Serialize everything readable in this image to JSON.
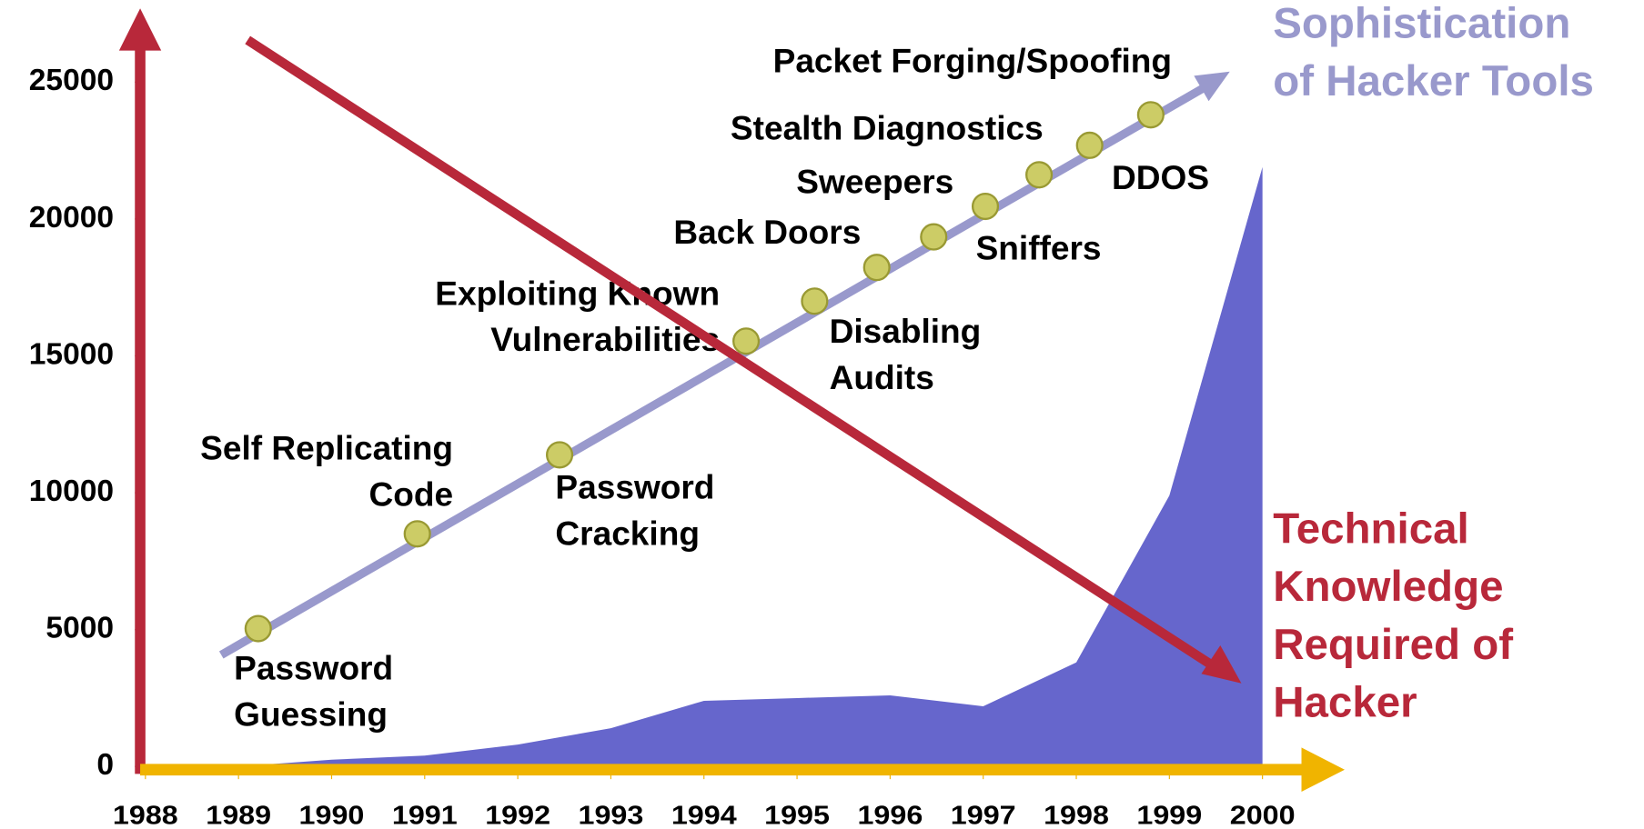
{
  "chart_data": {
    "type": "area",
    "x": [
      1989,
      1990,
      1991,
      1992,
      1993,
      1994,
      1995,
      1996,
      1997,
      1998,
      1999,
      2000
    ],
    "values": [
      0,
      250,
      400,
      800,
      1400,
      2400,
      2500,
      2600,
      2200,
      3800,
      9900,
      21900
    ],
    "color": "#6666cc",
    "xlim": [
      1988,
      2000
    ],
    "ylim": [
      0,
      25000
    ],
    "xticks": [
      1988,
      1989,
      1990,
      1991,
      1992,
      1993,
      1994,
      1995,
      1996,
      1997,
      1998,
      1999,
      2000
    ],
    "yticks": [
      0,
      5000,
      10000,
      15000,
      20000,
      25000
    ],
    "sophistication_label": [
      "Sophistication",
      "of Hacker Tools"
    ],
    "knowledge_label": [
      "Technical",
      "Knowledge",
      "Required of",
      "Hacker"
    ],
    "tools": [
      [
        "Password",
        "Guessing"
      ],
      [
        "Self Replicating",
        "Code"
      ],
      [
        "Password",
        "Cracking"
      ],
      [
        "Exploiting Known",
        "Vulnerabilities"
      ],
      [
        "Disabling",
        "Audits"
      ],
      [
        "Back Doors"
      ],
      [
        "Sweepers"
      ],
      [
        "Sniffers"
      ],
      [
        "Stealth  Diagnostics"
      ],
      [
        "DDOS"
      ],
      [
        "Packet Forging/Spoofing"
      ]
    ]
  }
}
